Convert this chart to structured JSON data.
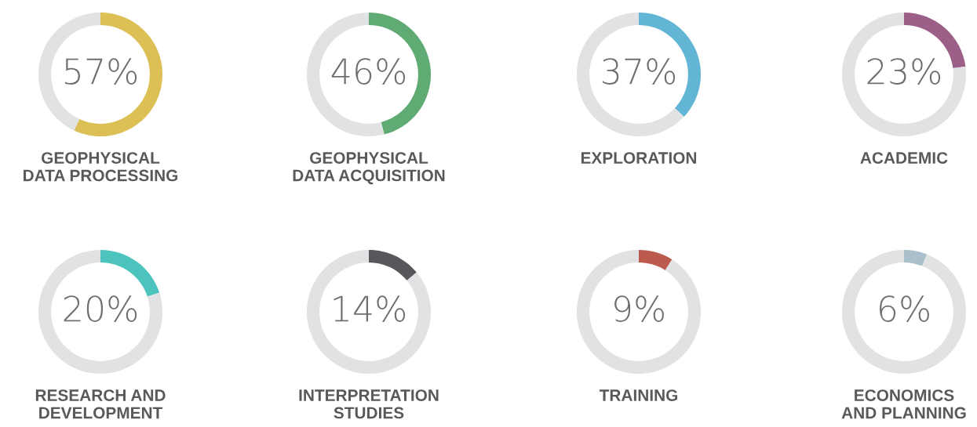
{
  "chart_data": [
    {
      "type": "donut",
      "title": "GEOPHYSICAL\nDATA PROCESSING",
      "categories": [
        null,
        null
      ],
      "values": [
        57,
        43
      ],
      "colors": [
        "#dcbf55",
        "#e1e2e4"
      ],
      "value_labels": [
        "57%",
        null
      ]
    },
    {
      "type": "donut",
      "title": "GEOPHYSICAL\nDATA ACQUISITION",
      "categories": [
        null,
        null
      ],
      "values": [
        46,
        54
      ],
      "colors": [
        "#5fab73",
        "#e1e2e4"
      ],
      "value_labels": [
        "46%",
        null
      ]
    },
    {
      "type": "donut",
      "title": "EXPLORATION",
      "categories": [
        null,
        null
      ],
      "values": [
        37,
        63
      ],
      "colors": [
        "#62b5d4",
        "#e1e2e4"
      ],
      "value_labels": [
        "37%",
        null
      ]
    },
    {
      "type": "donut",
      "title": "ACADEMIC",
      "categories": [
        null,
        null
      ],
      "values": [
        23,
        77
      ],
      "colors": [
        "#9b5f88",
        "#e1e2e4"
      ],
      "value_labels": [
        "23%",
        null
      ]
    },
    {
      "type": "donut",
      "title": "RESEARCH AND\nDEVELOPMENT",
      "categories": [
        null,
        null
      ],
      "values": [
        20,
        80
      ],
      "colors": [
        "#4cc4bd",
        "#e1e2e4"
      ],
      "value_labels": [
        "20%",
        null
      ]
    },
    {
      "type": "donut",
      "title": "INTERPRETATION\nSTUDIES",
      "categories": [
        null,
        null
      ],
      "values": [
        14,
        86
      ],
      "colors": [
        "#58585c",
        "#e1e2e4"
      ],
      "value_labels": [
        "14%",
        null
      ]
    },
    {
      "type": "donut",
      "title": "TRAINING",
      "categories": [
        null,
        null
      ],
      "values": [
        9,
        91
      ],
      "colors": [
        "#bc5a4d",
        "#e1e2e4"
      ],
      "value_labels": [
        "9%",
        null
      ]
    },
    {
      "type": "donut",
      "title": "ECONOMICS\nAND PLANNING",
      "categories": [
        null,
        null
      ],
      "values": [
        6,
        94
      ],
      "colors": [
        "#a9c0cc",
        "#e1e2e4"
      ],
      "value_labels": [
        "6%",
        null
      ]
    }
  ]
}
